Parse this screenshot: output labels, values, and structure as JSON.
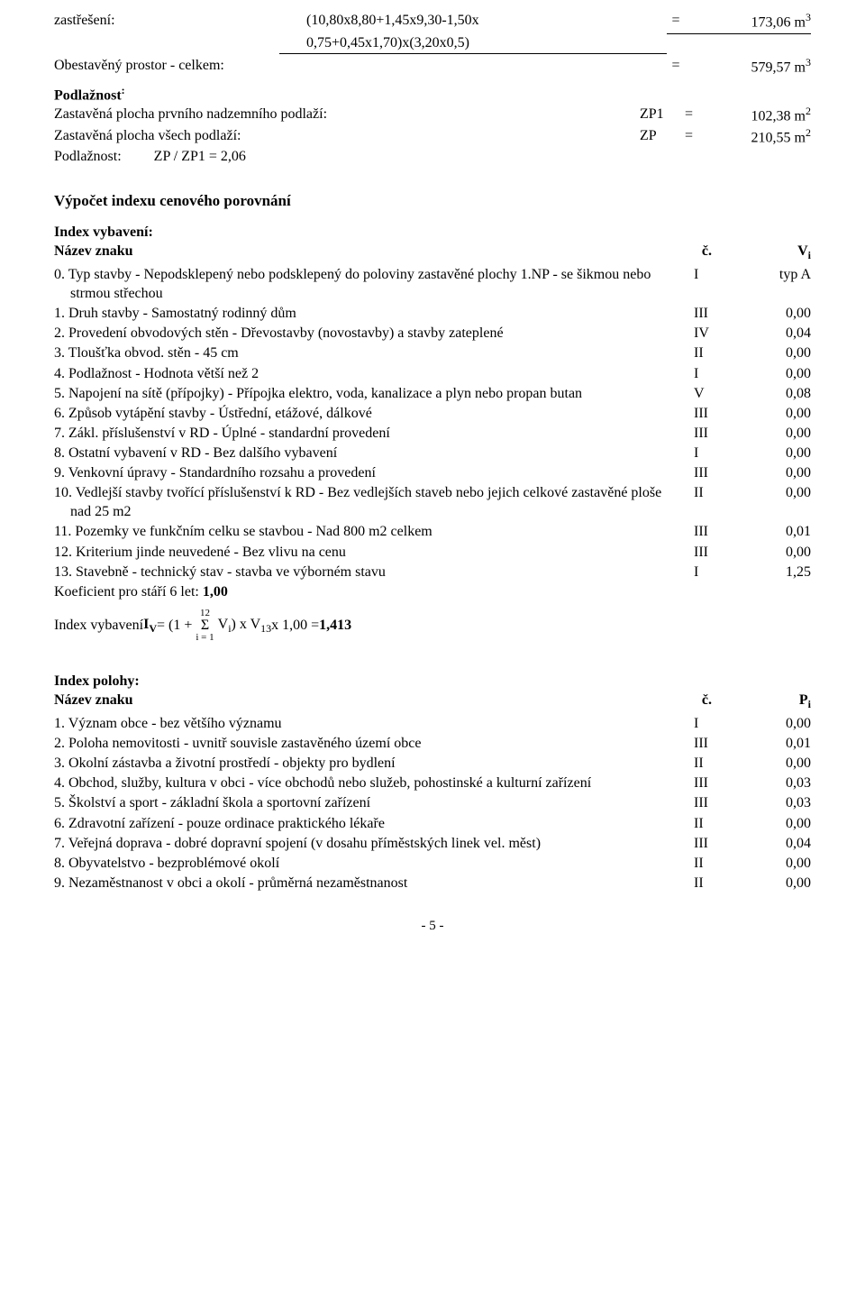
{
  "calc1": {
    "row1": {
      "label": "zastřešení:",
      "formula1": "(10,80x8,80+1,45x9,30-1,50x",
      "formula2": "0,75+0,45x1,70)x(3,20x0,5)",
      "eq": "=",
      "result": "173,06 m"
    },
    "row2": {
      "label": "Obestavěný prostor - celkem:",
      "eq": "=",
      "result": "579,57 m"
    }
  },
  "podlaznost_heading": "Podlažnost",
  "podlaznost": {
    "r1": {
      "label": "Zastavěná plocha prvního nadzemního podlaží:",
      "sym": "ZP1",
      "eq": "=",
      "val": "102,38 m"
    },
    "r2": {
      "label": "Zastavěná plocha všech podlaží:",
      "sym": "ZP",
      "eq": "=",
      "val": "210,55 m"
    },
    "r3": "Podlažnost:         ZP / ZP1 = 2,06"
  },
  "vypocet_heading": "Výpočet indexu cenového porovnání",
  "index_vybaveni_heading": "Index vybavení:",
  "table1": {
    "header": {
      "name": "Název znaku",
      "c": "č.",
      "v": "V"
    },
    "rows": [
      {
        "text": "0. Typ stavby - Nepodsklepený nebo podsklepený do poloviny zastavěné plochy 1.NP - se šikmou nebo strmou střechou",
        "c": "I",
        "v": "typ A"
      },
      {
        "text": "1. Druh stavby - Samostatný rodinný dům",
        "c": "III",
        "v": "0,00"
      },
      {
        "text": "2. Provedení obvodových stěn - Dřevostavby (novostavby) a stavby zateplené",
        "c": "IV",
        "v": "0,04"
      },
      {
        "text": "3. Tloušťka obvod. stěn - 45 cm",
        "c": "II",
        "v": "0,00"
      },
      {
        "text": "4. Podlažnost - Hodnota větší než 2",
        "c": "I",
        "v": "0,00"
      },
      {
        "text": "5. Napojení na sítě (přípojky) - Přípojka elektro, voda, kanalizace a plyn nebo propan butan",
        "c": "V",
        "v": "0,08"
      },
      {
        "text": "6. Způsob vytápění stavby - Ústřední, etážové, dálkové",
        "c": "III",
        "v": "0,00"
      },
      {
        "text": "7. Zákl. příslušenství v RD - Úplné - standardní provedení",
        "c": "III",
        "v": "0,00"
      },
      {
        "text": "8. Ostatní vybavení v RD - Bez dalšího vybavení",
        "c": "I",
        "v": "0,00"
      },
      {
        "text": "9. Venkovní úpravy - Standardního rozsahu a provedení",
        "c": "III",
        "v": "0,00"
      },
      {
        "text": "10. Vedlejší stavby tvořící příslušenství k RD - Bez vedlejších staveb nebo jejich celkové zastavěné ploše nad 25 m2",
        "c": "II",
        "v": "0,00"
      },
      {
        "text": "11. Pozemky ve funkčním celku se stavbou - Nad 800 m2 celkem",
        "c": "III",
        "v": "0,01"
      },
      {
        "text": "12. Kriterium jinde neuvedené - Bez vlivu na cenu",
        "c": "III",
        "v": "0,00"
      },
      {
        "text": "13. Stavebně - technický stav - stavba ve výborném stavu",
        "c": "I",
        "v": "1,25"
      }
    ],
    "koef": "Koeficient pro stáří 6 let: ",
    "koef_val": "1,00",
    "formula_left": "Index vybavení ",
    "formula_iv": "I",
    "formula_mid1": " = (1 + ",
    "formula_top": "12",
    "formula_sigma": "Σ",
    "formula_bottom": "i = 1",
    "formula_mid2": " V",
    "formula_mid3": ") x V",
    "formula_mid4": " x 1,00 = ",
    "formula_result": "1,413"
  },
  "index_polohy_heading": "Index polohy:",
  "table2": {
    "header": {
      "name": "Název znaku",
      "c": "č.",
      "v": "P"
    },
    "rows": [
      {
        "text": "1. Význam obce - bez většího významu",
        "c": "I",
        "v": "0,00"
      },
      {
        "text": "2. Poloha nemovitosti - uvnitř souvisle zastavěného území obce",
        "c": "III",
        "v": "0,01"
      },
      {
        "text": "3. Okolní zástavba a životní prostředí - objekty pro bydlení",
        "c": "II",
        "v": "0,00"
      },
      {
        "text": "4. Obchod, služby, kultura v obci - více obchodů nebo služeb, pohostinské a kulturní zařízení",
        "c": "III",
        "v": "0,03"
      },
      {
        "text": "5. Školství a sport - základní škola a sportovní zařízení",
        "c": "III",
        "v": "0,03"
      },
      {
        "text": "6. Zdravotní zařízení - pouze ordinace praktického lékaře",
        "c": "II",
        "v": "0,00"
      },
      {
        "text": "7. Veřejná doprava - dobré dopravní spojení (v dosahu příměstských linek vel. měst)",
        "c": "III",
        "v": "0,04"
      },
      {
        "text": "8. Obyvatelstvo - bezproblémové okolí",
        "c": "II",
        "v": "0,00"
      },
      {
        "text": "9. Nezaměstnanost v obci a okolí - průměrná nezaměstnanost",
        "c": "II",
        "v": "0,00"
      }
    ]
  },
  "page_num": "- 5 -"
}
